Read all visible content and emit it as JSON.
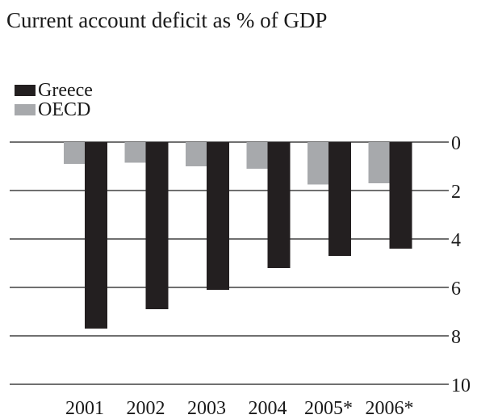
{
  "chart_data": {
    "type": "bar",
    "title": "Current account deficit as % of GDP",
    "categories": [
      "2001",
      "2002",
      "2003",
      "2004",
      "2005*",
      "2006*"
    ],
    "series": [
      {
        "name": "Greece",
        "color": "#231f20",
        "values": [
          7.7,
          6.9,
          6.1,
          5.2,
          4.7,
          4.4
        ]
      },
      {
        "name": "OECD",
        "color": "#a7a9ac",
        "values": [
          0.9,
          0.85,
          1.0,
          1.1,
          1.75,
          1.7
        ]
      }
    ],
    "yticks": [
      "0",
      "2",
      "4",
      "6",
      "8",
      "10"
    ],
    "ylim": [
      0,
      10
    ],
    "y_direction": "down",
    "y_axis_position": "right",
    "grid": true,
    "legend_position": "top-left"
  }
}
